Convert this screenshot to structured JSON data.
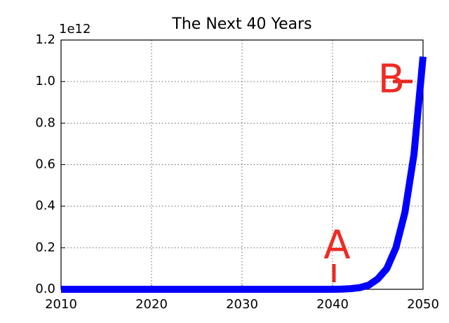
{
  "chart_data": {
    "type": "line",
    "title": "The Next 40 Years",
    "y_offset_label": "1e12",
    "x": [
      2010,
      2020,
      2030,
      2040,
      2041,
      2042,
      2043,
      2044,
      2045,
      2046,
      2047,
      2048,
      2049,
      2050
    ],
    "series": [
      {
        "color": "#0000ff",
        "values": [
          0,
          0,
          0,
          0,
          0.001,
          0.003,
          0.008,
          0.02,
          0.05,
          0.1,
          0.2,
          0.37,
          0.65,
          1.12
        ]
      }
    ],
    "xlim": [
      2010,
      2050
    ],
    "xticks": [
      2010,
      2020,
      2030,
      2040,
      2050
    ],
    "ylim": [
      0,
      1.2
    ],
    "yticks": [
      {
        "value": 0,
        "label": "0.0"
      },
      0.2,
      0.4,
      0.6,
      0.8,
      {
        "value": 1,
        "label": "1.0"
      },
      1.2
    ],
    "grid": true,
    "annotations": [
      {
        "text": "A",
        "x": 2040.5,
        "y": 0.2
      },
      {
        "text": "B",
        "x": 2046.5,
        "y": 1.0
      }
    ]
  }
}
